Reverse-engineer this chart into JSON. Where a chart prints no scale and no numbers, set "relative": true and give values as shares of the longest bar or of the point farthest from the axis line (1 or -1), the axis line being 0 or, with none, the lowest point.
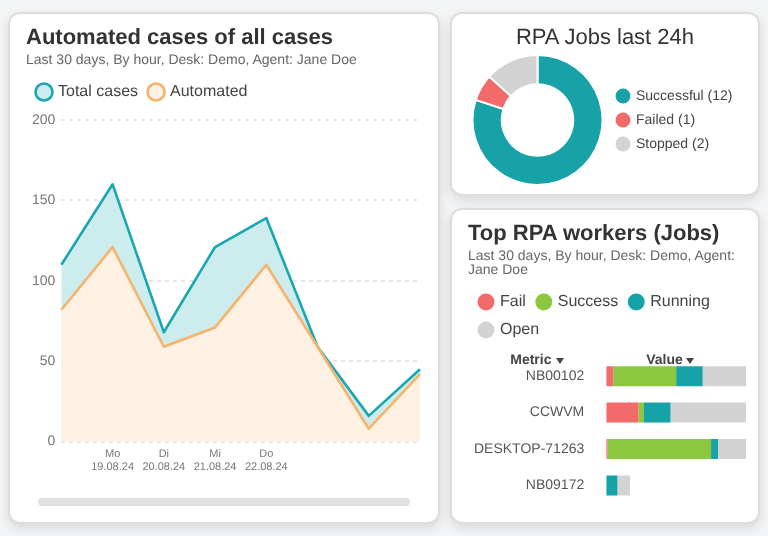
{
  "chart_data": [
    {
      "type": "area",
      "title": "Automated cases of all cases",
      "subtitle": "Last 30 days, By hour, Desk: Demo, Agent: Jane Doe",
      "categories": [
        null,
        "Mo\n19.08.24",
        "Di\n20.08.24",
        "Mi\n21.08.24",
        "Do\n22.08.24",
        null,
        null,
        null
      ],
      "series": [
        {
          "name": "Total cases",
          "color": "#1aa7b0",
          "values": [
            110,
            160,
            68,
            121,
            139,
            59,
            16,
            45
          ]
        },
        {
          "name": "Automated",
          "color": "#f5b36b",
          "values": [
            82,
            121,
            59,
            71,
            110,
            59,
            8,
            42
          ]
        }
      ],
      "ylim": [
        0,
        200
      ],
      "yticks": [
        0,
        50,
        100,
        150,
        200
      ],
      "grid": "y",
      "legend": "top left"
    },
    {
      "type": "donut",
      "title": "RPA Jobs last 24h",
      "categories": [
        "Successful (12)",
        "Failed (1)",
        "Stopped (2)"
      ],
      "values": [
        12,
        1,
        2
      ],
      "colors": [
        "#17a2a8",
        "#f26b6b",
        "#d3d3d3"
      ],
      "legend": "right"
    },
    {
      "type": "bar",
      "title": "Top RPA workers (Jobs)",
      "subtitle": "Last 30 days, By hour, Desk: Demo, Agent: Jane Doe",
      "orientation": "horizontal",
      "stacked": true,
      "relative": true,
      "ylabel": "Metric",
      "xlabel": "Value",
      "categories": [
        "NB00102",
        "CCWVM",
        "DESKTOP-71263",
        "NB09172"
      ],
      "series": [
        {
          "name": "Fail",
          "color": "#f26b6b",
          "values": [
            0.05,
            0.23,
            0.01,
            0
          ]
        },
        {
          "name": "Success",
          "color": "#8dc63f",
          "values": [
            0.45,
            0.04,
            0.74,
            0
          ]
        },
        {
          "name": "Running",
          "color": "#17a2a8",
          "values": [
            0.19,
            0.19,
            0.05,
            0.08
          ]
        },
        {
          "name": "Open",
          "color": "#d3d3d3",
          "values": [
            0.31,
            0.54,
            0.2,
            0.09
          ]
        }
      ],
      "legend": "top left"
    }
  ]
}
